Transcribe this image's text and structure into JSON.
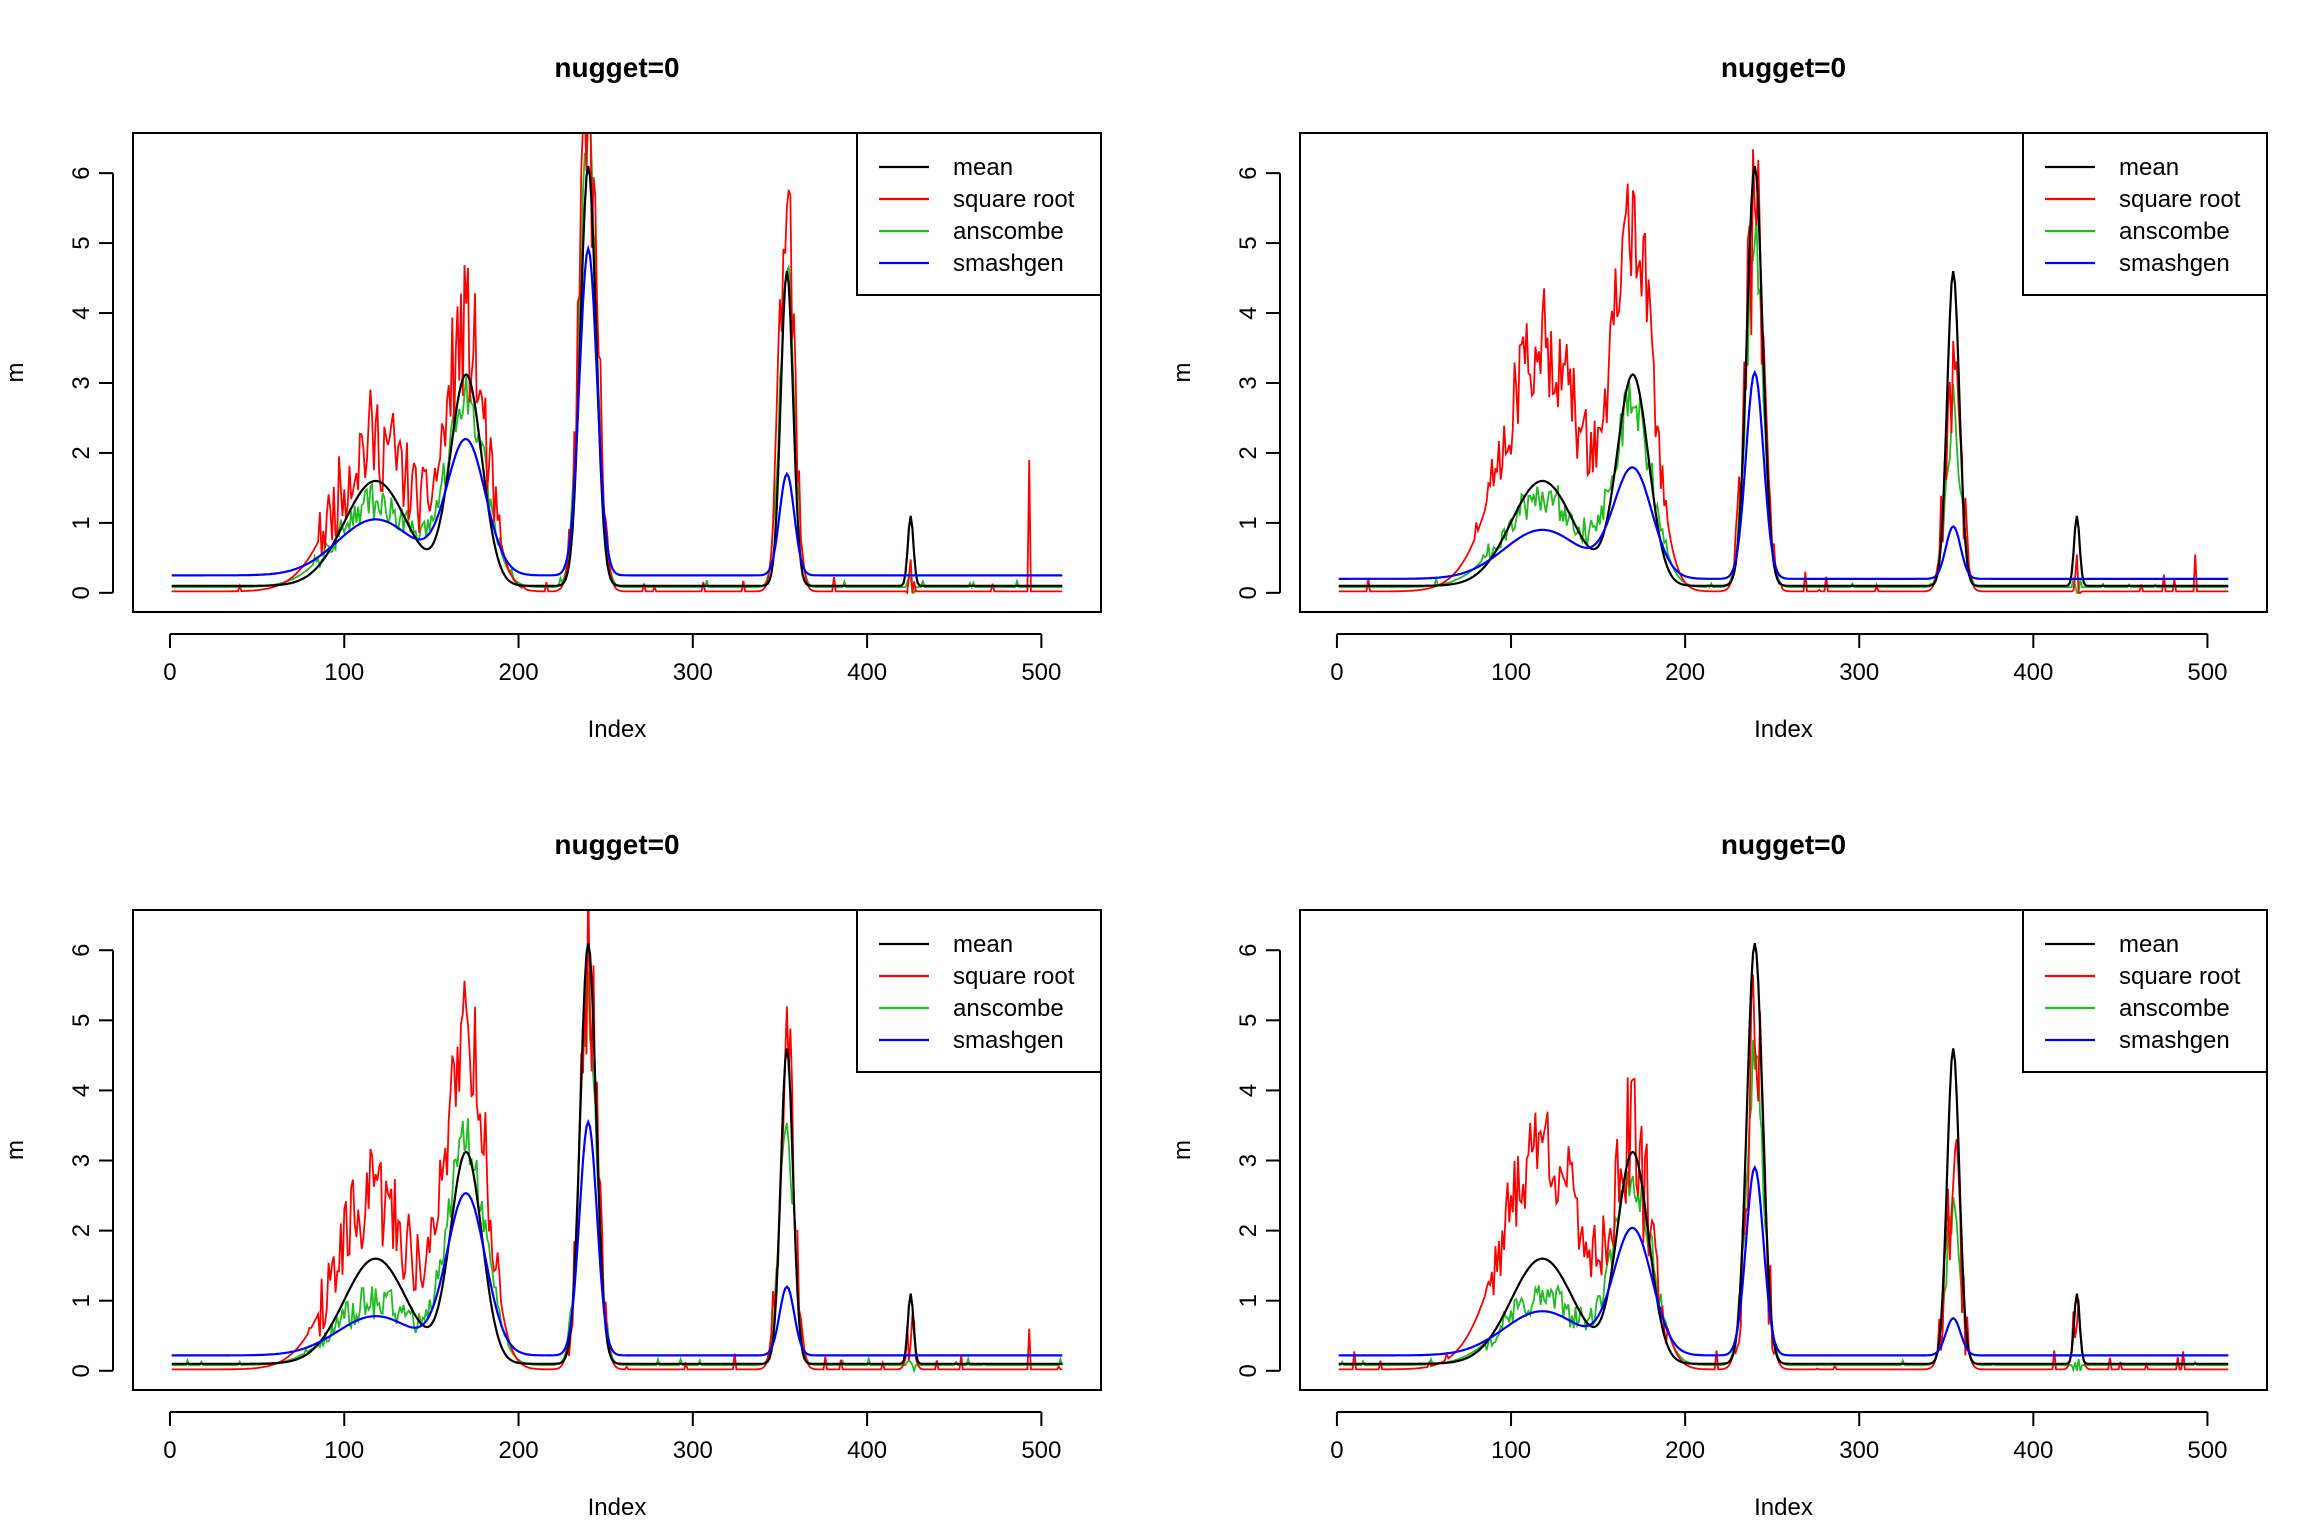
{
  "chart_data": [
    {
      "type": "line",
      "title": "nugget=0",
      "xlabel": "Index",
      "ylabel": "m",
      "xlim": [
        1,
        512
      ],
      "ylim": [
        0,
        6.3
      ],
      "xticks": [
        "0",
        "100",
        "200",
        "300",
        "400",
        "500"
      ],
      "yticks": [
        "0",
        "1",
        "2",
        "3",
        "4",
        "5",
        "6"
      ],
      "legend_position": "top-right",
      "series": [
        {
          "name": "mean",
          "color": "#000000",
          "role": "mean"
        },
        {
          "name": "square root",
          "color": "#FF0000",
          "role": "sqrt",
          "peaks": [
            2.2,
            3.6,
            6.8,
            5.4,
            0.0,
            1.9
          ],
          "seed": 11
        },
        {
          "name": "anscombe",
          "color": "#22BB22",
          "role": "ansc",
          "peaks": [
            1.3,
            2.7,
            6.4,
            4.6,
            0.0,
            0.0
          ],
          "seed": 12
        },
        {
          "name": "smashgen",
          "color": "#0000FF",
          "role": "smash",
          "peaks": [
            1.05,
            2.15,
            4.92,
            1.7,
            0.0,
            0.0
          ],
          "base": 0.25
        }
      ]
    },
    {
      "type": "line",
      "title": "nugget=0",
      "xlabel": "Index",
      "ylabel": "m",
      "xlim": [
        1,
        512
      ],
      "ylim": [
        0,
        6.3
      ],
      "xticks": [
        "0",
        "100",
        "200",
        "300",
        "400",
        "500"
      ],
      "yticks": [
        "0",
        "1",
        "2",
        "3",
        "4",
        "5",
        "6"
      ],
      "legend_position": "top-right",
      "series": [
        {
          "name": "mean",
          "color": "#000000",
          "role": "mean"
        },
        {
          "name": "square root",
          "color": "#FF0000",
          "role": "sqrt",
          "peaks": [
            3.6,
            5.1,
            5.5,
            3.6,
            0.0,
            0.55
          ],
          "seed": 21
        },
        {
          "name": "anscombe",
          "color": "#22BB22",
          "role": "ansc",
          "peaks": [
            1.4,
            2.6,
            5.0,
            2.6,
            0.0,
            0.0
          ],
          "seed": 22
        },
        {
          "name": "smashgen",
          "color": "#0000FF",
          "role": "smash",
          "peaks": [
            0.9,
            1.75,
            3.15,
            0.95,
            0.0,
            0.0
          ],
          "base": 0.2
        }
      ]
    },
    {
      "type": "line",
      "title": "nugget=0",
      "xlabel": "Index",
      "ylabel": "m",
      "xlim": [
        1,
        512
      ],
      "ylim": [
        0,
        6.3
      ],
      "xticks": [
        "0",
        "100",
        "200",
        "300",
        "400",
        "500"
      ],
      "yticks": [
        "0",
        "1",
        "2",
        "3",
        "4",
        "5",
        "6"
      ],
      "legend_position": "top-right",
      "series": [
        {
          "name": "mean",
          "color": "#000000",
          "role": "mean"
        },
        {
          "name": "square root",
          "color": "#FF0000",
          "role": "sqrt",
          "peaks": [
            2.45,
            4.9,
            5.7,
            4.95,
            0.4,
            0.6
          ],
          "seed": 31
        },
        {
          "name": "anscombe",
          "color": "#22BB22",
          "role": "ansc",
          "peaks": [
            1.0,
            3.2,
            5.2,
            3.45,
            0.0,
            0.0
          ],
          "seed": 32
        },
        {
          "name": "smashgen",
          "color": "#0000FF",
          "role": "smash",
          "peaks": [
            0.78,
            2.5,
            3.55,
            1.2,
            0.0,
            0.0
          ],
          "base": 0.22
        }
      ]
    },
    {
      "type": "line",
      "title": "nugget=0",
      "xlabel": "Index",
      "ylabel": "m",
      "xlim": [
        1,
        512
      ],
      "ylim": [
        0,
        6.3
      ],
      "xticks": [
        "0",
        "100",
        "200",
        "300",
        "400",
        "500"
      ],
      "yticks": [
        "0",
        "1",
        "2",
        "3",
        "4",
        "5",
        "6"
      ],
      "legend_position": "top-right",
      "series": [
        {
          "name": "mean",
          "color": "#000000",
          "role": "mean"
        },
        {
          "name": "square root",
          "color": "#FF0000",
          "role": "sqrt",
          "peaks": [
            3.25,
            3.0,
            4.65,
            2.65,
            0.65,
            0.0
          ],
          "seed": 41
        },
        {
          "name": "anscombe",
          "color": "#22BB22",
          "role": "ansc",
          "peaks": [
            1.05,
            2.65,
            4.3,
            2.15,
            0.0,
            0.0
          ],
          "seed": 42
        },
        {
          "name": "smashgen",
          "color": "#0000FF",
          "role": "smash",
          "peaks": [
            0.85,
            2.0,
            2.9,
            0.75,
            0.0,
            0.0
          ],
          "base": 0.22
        }
      ]
    }
  ]
}
